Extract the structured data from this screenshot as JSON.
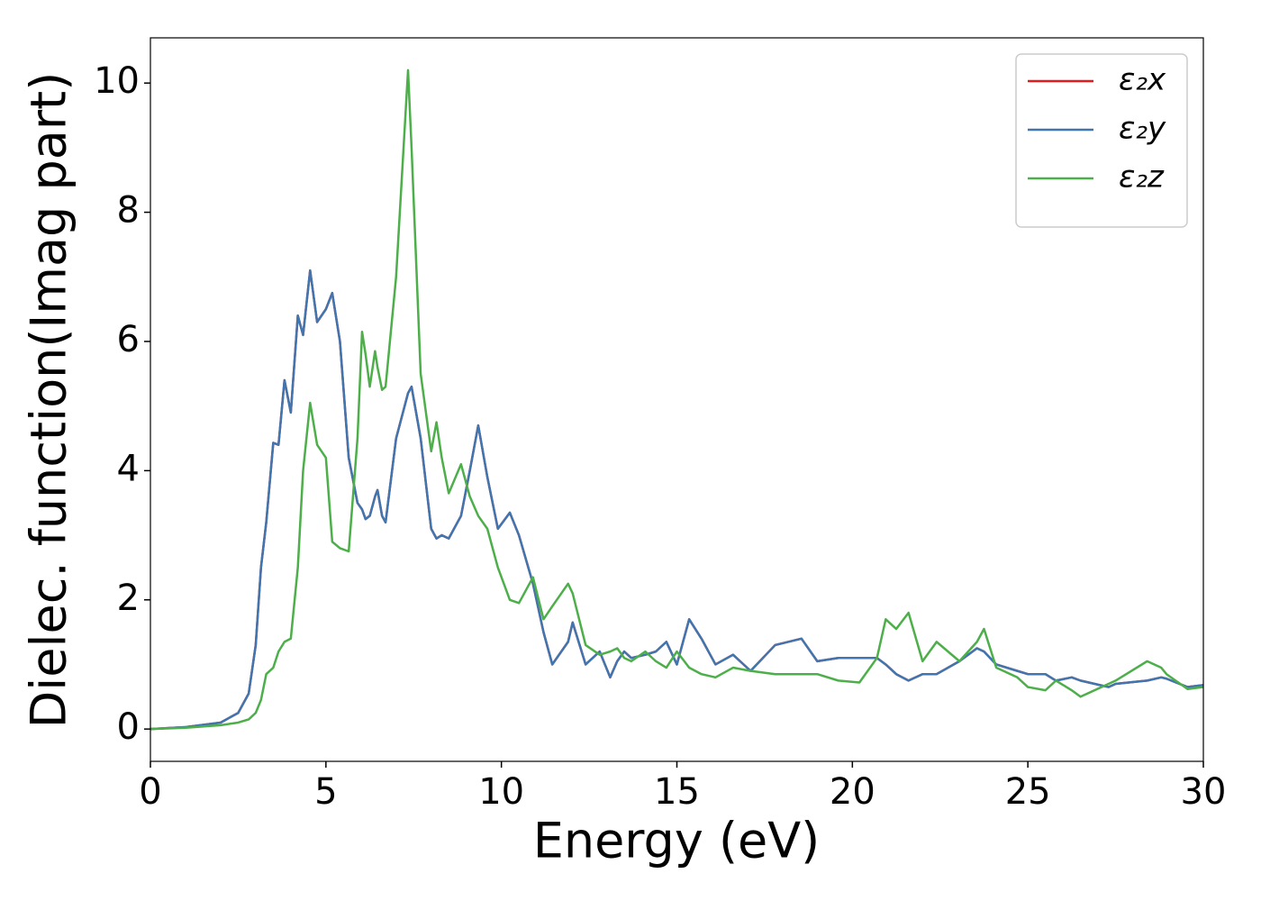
{
  "chart_data": {
    "type": "line",
    "xlabel": "Energy (eV)",
    "ylabel": "Dielec. function(Imag part)",
    "xlim": [
      0,
      30
    ],
    "ylim": [
      -0.5,
      10.7
    ],
    "xticks": [
      0,
      5,
      10,
      15,
      20,
      25,
      30
    ],
    "yticks": [
      0,
      2,
      4,
      6,
      8,
      10
    ],
    "grid": false,
    "legend": "upper right",
    "x": [
      0,
      1,
      2,
      2.5,
      2.8,
      3.0,
      3.15,
      3.3,
      3.5,
      3.65,
      3.82,
      4.0,
      4.2,
      4.35,
      4.55,
      4.75,
      5.0,
      5.18,
      5.4,
      5.65,
      5.9,
      6.03,
      6.13,
      6.25,
      6.4,
      6.47,
      6.6,
      6.7,
      7.0,
      7.34,
      7.44,
      7.7,
      8.0,
      8.15,
      8.3,
      8.5,
      8.85,
      9.1,
      9.34,
      9.6,
      9.9,
      10.24,
      10.5,
      10.9,
      11.2,
      11.45,
      11.9,
      12.03,
      12.4,
      12.8,
      13.1,
      13.3,
      13.5,
      13.7,
      14.1,
      14.4,
      14.7,
      15.0,
      15.35,
      15.7,
      16.1,
      16.6,
      17.1,
      17.8,
      18.55,
      19.0,
      19.6,
      20.2,
      20.7,
      20.95,
      21.25,
      21.6,
      22.0,
      22.4,
      23.05,
      23.55,
      23.75,
      24.1,
      24.7,
      25.0,
      25.5,
      25.8,
      26.25,
      26.5,
      27.3,
      27.5,
      28.4,
      28.8,
      28.95,
      29.55,
      30
    ],
    "series": [
      {
        "name": "ε₂x",
        "color": "#e41a1c",
        "values": [
          0,
          0.03,
          0.1,
          0.25,
          0.55,
          1.3,
          2.5,
          3.2,
          4.43,
          4.4,
          5.4,
          4.9,
          6.4,
          6.1,
          7.1,
          6.3,
          6.5,
          6.75,
          6.0,
          4.2,
          3.5,
          3.4,
          3.25,
          3.3,
          3.6,
          3.7,
          3.3,
          3.2,
          4.5,
          5.2,
          5.3,
          4.5,
          3.1,
          2.95,
          3.0,
          2.95,
          3.3,
          4.0,
          4.7,
          3.9,
          3.1,
          3.35,
          3.0,
          2.25,
          1.5,
          1.0,
          1.35,
          1.65,
          1.0,
          1.2,
          0.8,
          1.05,
          1.2,
          1.1,
          1.15,
          1.2,
          1.35,
          1.0,
          1.7,
          1.4,
          1.0,
          1.15,
          0.9,
          1.3,
          1.4,
          1.05,
          1.1,
          1.1,
          1.1,
          1.0,
          0.85,
          0.75,
          0.85,
          0.85,
          1.05,
          1.25,
          1.2,
          1.0,
          0.9,
          0.85,
          0.85,
          0.75,
          0.8,
          0.75,
          0.65,
          0.7,
          0.75,
          0.8,
          0.78,
          0.65,
          0.68
        ]
      },
      {
        "name": "ε₂y",
        "color": "#3f76b0",
        "values": [
          0,
          0.03,
          0.1,
          0.25,
          0.55,
          1.3,
          2.5,
          3.2,
          4.43,
          4.4,
          5.4,
          4.9,
          6.4,
          6.1,
          7.1,
          6.3,
          6.5,
          6.75,
          6.0,
          4.2,
          3.5,
          3.4,
          3.25,
          3.3,
          3.6,
          3.7,
          3.3,
          3.2,
          4.5,
          5.2,
          5.3,
          4.5,
          3.1,
          2.95,
          3.0,
          2.95,
          3.3,
          4.0,
          4.7,
          3.9,
          3.1,
          3.35,
          3.0,
          2.25,
          1.5,
          1.0,
          1.35,
          1.65,
          1.0,
          1.2,
          0.8,
          1.05,
          1.2,
          1.1,
          1.15,
          1.2,
          1.35,
          1.0,
          1.7,
          1.4,
          1.0,
          1.15,
          0.9,
          1.3,
          1.4,
          1.05,
          1.1,
          1.1,
          1.1,
          1.0,
          0.85,
          0.75,
          0.85,
          0.85,
          1.05,
          1.25,
          1.2,
          1.0,
          0.9,
          0.85,
          0.85,
          0.75,
          0.8,
          0.75,
          0.65,
          0.7,
          0.75,
          0.8,
          0.78,
          0.65,
          0.68
        ]
      },
      {
        "name": "ε₂z",
        "color": "#4daf4a",
        "values": [
          0,
          0.02,
          0.06,
          0.1,
          0.15,
          0.25,
          0.45,
          0.85,
          0.95,
          1.2,
          1.35,
          1.4,
          2.5,
          4.0,
          5.05,
          4.4,
          4.2,
          2.9,
          2.8,
          2.75,
          4.5,
          6.15,
          5.8,
          5.3,
          5.85,
          5.6,
          5.25,
          5.3,
          7.0,
          10.2,
          9.0,
          5.5,
          4.3,
          4.75,
          4.2,
          3.65,
          4.1,
          3.6,
          3.3,
          3.1,
          2.5,
          2.0,
          1.95,
          2.35,
          1.7,
          1.9,
          2.25,
          2.1,
          1.3,
          1.15,
          1.2,
          1.25,
          1.1,
          1.05,
          1.2,
          1.05,
          0.95,
          1.2,
          0.95,
          0.85,
          0.8,
          0.95,
          0.9,
          0.85,
          0.85,
          0.85,
          0.75,
          0.72,
          1.1,
          1.7,
          1.55,
          1.8,
          1.05,
          1.35,
          1.05,
          1.35,
          1.55,
          0.95,
          0.8,
          0.65,
          0.6,
          0.75,
          0.6,
          0.5,
          0.7,
          0.75,
          1.05,
          0.95,
          0.85,
          0.62,
          0.65
        ]
      }
    ]
  }
}
